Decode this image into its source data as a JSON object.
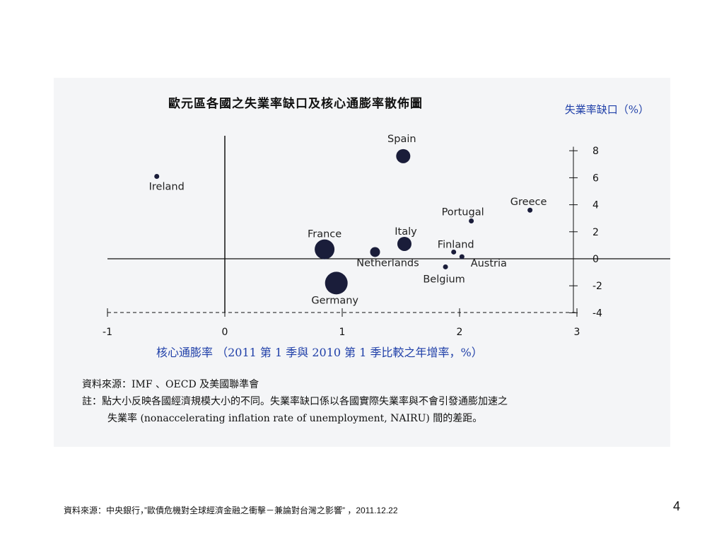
{
  "chart_data": {
    "type": "scatter",
    "title": "歐元區各國之失業率缺口及核心通膨率散佈圖",
    "ylabel": "失業率缺口（%）",
    "xlabel": "核心通膨率 （2011 第 1 季與 2010 第 1 季比較之年增率，%）",
    "xlim": [
      -1,
      3
    ],
    "ylim": [
      -4,
      9
    ],
    "xticks": [
      -1,
      0,
      1,
      2,
      3
    ],
    "yticks": [
      8,
      6,
      4,
      2,
      0,
      -2,
      -4
    ],
    "grid": false,
    "points": [
      {
        "label": "Spain",
        "x": 1.52,
        "y": 7.6,
        "size": "large"
      },
      {
        "label": "Ireland",
        "x": -0.58,
        "y": 6.1,
        "size": "small"
      },
      {
        "label": "Greece",
        "x": 2.6,
        "y": 3.6,
        "size": "small"
      },
      {
        "label": "Portugal",
        "x": 2.1,
        "y": 2.8,
        "size": "small"
      },
      {
        "label": "France",
        "x": 0.85,
        "y": 0.7,
        "size": "xlarge"
      },
      {
        "label": "Italy",
        "x": 1.53,
        "y": 1.1,
        "size": "large"
      },
      {
        "label": "Netherlands",
        "x": 1.28,
        "y": 0.5,
        "size": "medium"
      },
      {
        "label": "Finland",
        "x": 1.95,
        "y": 0.5,
        "size": "small"
      },
      {
        "label": "Austria",
        "x": 2.02,
        "y": 0.15,
        "size": "small"
      },
      {
        "label": "Belgium",
        "x": 1.88,
        "y": -0.6,
        "size": "small"
      },
      {
        "label": "Germany",
        "x": 0.95,
        "y": -1.8,
        "size": "xxlarge"
      }
    ]
  },
  "notes": {
    "sources": "資料來源：IMF 、OECD 及美國聯準會",
    "note_line1": "註：點大小反映各國經濟規模大小的不同。失業率缺口係以各國實際失業率與不會引發通膨加速之",
    "note_line2": "失業率 (nonaccelerating inflation rate of unemployment, NAIRU) 間的差距。"
  },
  "footer": {
    "source": "資料來源：中央銀行，”歐債危機對全球經濟金融之衝擊－兼論對台灣之影響” ，2011.12.22",
    "page_number": "4"
  }
}
